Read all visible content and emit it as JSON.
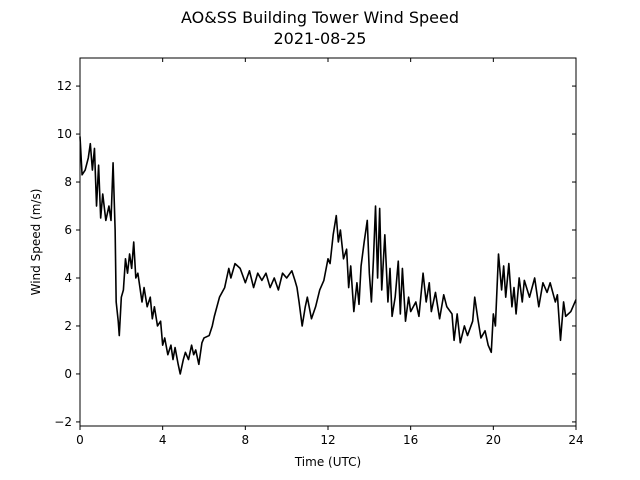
{
  "chart_data": {
    "type": "line",
    "title": "AO&SS Building Tower Wind Speed",
    "subtitle": "2021-08-25",
    "x_label": "Time (UTC)",
    "y_label": "Wind Speed (m/s)",
    "xlim": [
      0,
      24
    ],
    "xticks": [
      0,
      4,
      8,
      12,
      16,
      20,
      24
    ],
    "ylim": [
      -2.17,
      13.17
    ],
    "yticks": [
      {
        "value": -2,
        "label": "−2"
      },
      0,
      2,
      4,
      6,
      8,
      10,
      12
    ],
    "grid": false,
    "series": [
      {
        "color": "#000000",
        "x": [
          0,
          0.1,
          0.25,
          0.4,
          0.5,
          0.6,
          0.7,
          0.8,
          0.9,
          1.0,
          1.1,
          1.25,
          1.4,
          1.5,
          1.6,
          1.7,
          1.75,
          1.85,
          1.9,
          2.0,
          2.1,
          2.2,
          2.3,
          2.4,
          2.5,
          2.6,
          2.7,
          2.8,
          3.0,
          3.1,
          3.25,
          3.4,
          3.5,
          3.6,
          3.75,
          3.9,
          4.0,
          4.1,
          4.25,
          4.4,
          4.5,
          4.6,
          4.75,
          4.85,
          5.0,
          5.1,
          5.25,
          5.4,
          5.5,
          5.6,
          5.75,
          5.9,
          6.0,
          6.25,
          6.4,
          6.5,
          6.75,
          7.0,
          7.2,
          7.3,
          7.5,
          7.75,
          8.0,
          8.2,
          8.4,
          8.6,
          8.8,
          9.0,
          9.2,
          9.4,
          9.6,
          9.8,
          10.0,
          10.25,
          10.4,
          10.5,
          10.6,
          10.75,
          10.9,
          11.0,
          11.2,
          11.4,
          11.6,
          11.8,
          12.0,
          12.1,
          12.25,
          12.4,
          12.5,
          12.6,
          12.75,
          12.9,
          13.0,
          13.1,
          13.25,
          13.4,
          13.5,
          13.6,
          13.75,
          13.9,
          14.0,
          14.1,
          14.2,
          14.3,
          14.4,
          14.5,
          14.6,
          14.75,
          14.9,
          15.0,
          15.1,
          15.25,
          15.4,
          15.5,
          15.6,
          15.75,
          15.9,
          16.0,
          16.25,
          16.4,
          16.6,
          16.75,
          16.9,
          17.0,
          17.2,
          17.4,
          17.6,
          17.75,
          18.0,
          18.1,
          18.25,
          18.4,
          18.6,
          18.75,
          19.0,
          19.1,
          19.25,
          19.4,
          19.6,
          19.75,
          19.9,
          20.0,
          20.1,
          20.25,
          20.4,
          20.5,
          20.6,
          20.75,
          20.9,
          21.0,
          21.1,
          21.25,
          21.4,
          21.5,
          21.75,
          22.0,
          22.2,
          22.4,
          22.6,
          22.75,
          23.0,
          23.1,
          23.25,
          23.4,
          23.5,
          23.75,
          24.0
        ],
        "values": [
          9.9,
          8.3,
          8.5,
          9.0,
          9.6,
          8.5,
          9.4,
          7.0,
          8.7,
          6.5,
          7.5,
          6.4,
          7.0,
          6.4,
          8.8,
          6.0,
          3.0,
          2.2,
          1.6,
          3.2,
          3.5,
          4.8,
          4.2,
          5.0,
          4.4,
          5.5,
          4.0,
          4.2,
          3.0,
          3.6,
          2.8,
          3.2,
          2.3,
          2.8,
          2.0,
          2.2,
          1.2,
          1.5,
          0.8,
          1.2,
          0.6,
          1.1,
          0.4,
          0.0,
          0.6,
          0.9,
          0.6,
          1.2,
          0.8,
          1.0,
          0.4,
          1.3,
          1.5,
          1.6,
          2.0,
          2.4,
          3.2,
          3.6,
          4.4,
          4.0,
          4.6,
          4.4,
          3.8,
          4.3,
          3.6,
          4.2,
          3.9,
          4.2,
          3.6,
          4.0,
          3.5,
          4.2,
          4.0,
          4.3,
          3.9,
          3.6,
          3.0,
          2.0,
          2.8,
          3.2,
          2.3,
          2.8,
          3.5,
          3.9,
          4.8,
          4.6,
          5.8,
          6.6,
          5.5,
          6.0,
          4.8,
          5.2,
          3.6,
          4.5,
          2.6,
          3.8,
          2.9,
          4.5,
          5.5,
          6.4,
          4.2,
          3.0,
          4.8,
          7.0,
          4.0,
          6.9,
          3.5,
          5.8,
          3.0,
          4.4,
          2.4,
          3.2,
          4.7,
          2.5,
          4.4,
          2.2,
          3.2,
          2.6,
          3.0,
          2.4,
          4.2,
          3.0,
          3.8,
          2.6,
          3.4,
          2.3,
          3.3,
          2.8,
          2.5,
          1.4,
          2.5,
          1.3,
          2.0,
          1.6,
          2.2,
          3.2,
          2.3,
          1.5,
          1.8,
          1.2,
          0.9,
          2.5,
          2.0,
          5.0,
          3.5,
          4.5,
          3.2,
          4.6,
          2.8,
          3.6,
          2.5,
          4.0,
          3.0,
          3.9,
          3.2,
          4.0,
          2.8,
          3.8,
          3.4,
          3.8,
          3.0,
          3.3,
          1.4,
          3.0,
          2.4,
          2.6,
          3.1
        ]
      }
    ]
  }
}
